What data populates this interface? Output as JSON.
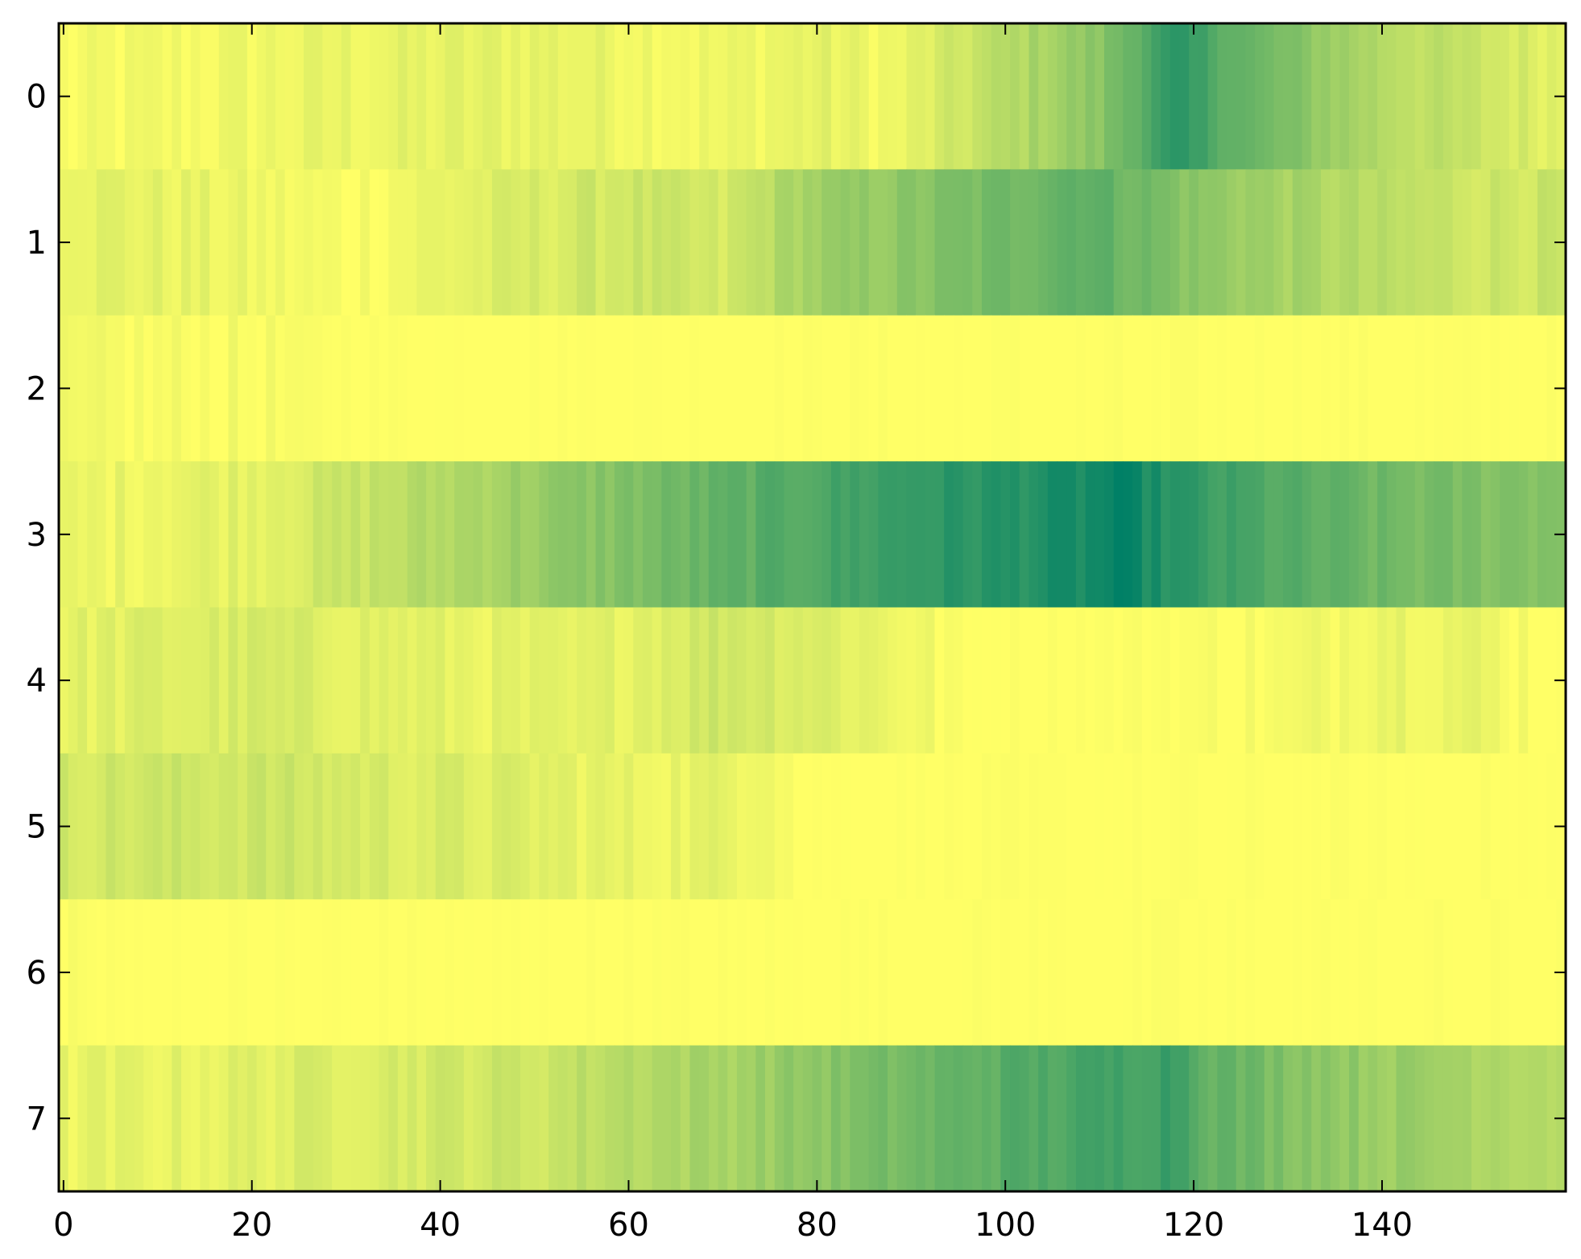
{
  "chart_data": {
    "type": "heatmap",
    "colormap": "summer_r",
    "colormap_stops": {
      "low": "#ffff66",
      "high": "#008066"
    },
    "n_rows": 8,
    "n_cols": 160,
    "value_range": [
      0,
      1
    ],
    "xlim": [
      -0.5,
      159.5
    ],
    "ylim": [
      7.5,
      -0.5
    ],
    "x_ticks": [
      0,
      20,
      40,
      60,
      80,
      100,
      120,
      140
    ],
    "y_ticks": [
      0,
      1,
      2,
      3,
      4,
      5,
      6,
      7
    ],
    "x_tick_labels": [
      "0",
      "20",
      "40",
      "60",
      "80",
      "100",
      "120",
      "140"
    ],
    "y_tick_labels": [
      "0",
      "1",
      "2",
      "3",
      "4",
      "5",
      "6",
      "7"
    ],
    "grid": false,
    "legend": "none",
    "row_profiles": [
      {
        "row": 0,
        "points": [
          [
            0,
            0.02
          ],
          [
            12,
            0.04
          ],
          [
            30,
            0.08
          ],
          [
            50,
            0.1
          ],
          [
            70,
            0.05
          ],
          [
            80,
            0.1
          ],
          [
            88,
            0.05
          ],
          [
            96,
            0.2
          ],
          [
            104,
            0.35
          ],
          [
            110,
            0.45
          ],
          [
            114,
            0.65
          ],
          [
            118,
            0.8
          ],
          [
            122,
            0.7
          ],
          [
            127,
            0.55
          ],
          [
            132,
            0.45
          ],
          [
            140,
            0.3
          ],
          [
            150,
            0.2
          ],
          [
            159,
            0.12
          ]
        ]
      },
      {
        "row": 1,
        "points": [
          [
            0,
            0.12
          ],
          [
            15,
            0.08
          ],
          [
            30,
            0.02
          ],
          [
            45,
            0.12
          ],
          [
            60,
            0.2
          ],
          [
            70,
            0.15
          ],
          [
            78,
            0.35
          ],
          [
            90,
            0.45
          ],
          [
            100,
            0.55
          ],
          [
            108,
            0.65
          ],
          [
            115,
            0.55
          ],
          [
            120,
            0.45
          ],
          [
            130,
            0.35
          ],
          [
            140,
            0.25
          ],
          [
            150,
            0.2
          ],
          [
            159,
            0.2
          ]
        ]
      },
      {
        "row": 2,
        "points": [
          [
            0,
            0.02
          ],
          [
            20,
            0.02
          ],
          [
            40,
            0.0
          ],
          [
            159,
            0.0
          ]
        ]
      },
      {
        "row": 3,
        "points": [
          [
            0,
            0.06
          ],
          [
            20,
            0.12
          ],
          [
            30,
            0.2
          ],
          [
            40,
            0.3
          ],
          [
            50,
            0.4
          ],
          [
            60,
            0.5
          ],
          [
            70,
            0.6
          ],
          [
            80,
            0.7
          ],
          [
            90,
            0.8
          ],
          [
            100,
            0.85
          ],
          [
            108,
            0.9
          ],
          [
            112,
            0.97
          ],
          [
            116,
            0.88
          ],
          [
            122,
            0.75
          ],
          [
            130,
            0.65
          ],
          [
            140,
            0.55
          ],
          [
            150,
            0.5
          ],
          [
            159,
            0.5
          ]
        ]
      },
      {
        "row": 4,
        "points": [
          [
            0,
            0.1
          ],
          [
            20,
            0.15
          ],
          [
            40,
            0.1
          ],
          [
            55,
            0.08
          ],
          [
            70,
            0.2
          ],
          [
            80,
            0.15
          ],
          [
            88,
            0.08
          ],
          [
            96,
            0.0
          ],
          [
            130,
            0.02
          ],
          [
            140,
            0.1
          ],
          [
            150,
            0.08
          ],
          [
            159,
            0.0
          ]
        ]
      },
      {
        "row": 5,
        "points": [
          [
            0,
            0.18
          ],
          [
            20,
            0.2
          ],
          [
            35,
            0.15
          ],
          [
            50,
            0.12
          ],
          [
            60,
            0.08
          ],
          [
            75,
            0.1
          ],
          [
            78,
            0.0
          ],
          [
            159,
            0.0
          ]
        ]
      },
      {
        "row": 6,
        "points": [
          [
            0,
            0.02
          ],
          [
            5,
            0.0
          ],
          [
            159,
            0.0
          ]
        ]
      },
      {
        "row": 7,
        "points": [
          [
            0,
            0.08
          ],
          [
            15,
            0.1
          ],
          [
            30,
            0.15
          ],
          [
            50,
            0.2
          ],
          [
            60,
            0.3
          ],
          [
            70,
            0.35
          ],
          [
            80,
            0.45
          ],
          [
            90,
            0.55
          ],
          [
            100,
            0.65
          ],
          [
            110,
            0.72
          ],
          [
            118,
            0.78
          ],
          [
            122,
            0.62
          ],
          [
            130,
            0.5
          ],
          [
            140,
            0.4
          ],
          [
            150,
            0.35
          ],
          [
            159,
            0.3
          ]
        ]
      }
    ]
  }
}
